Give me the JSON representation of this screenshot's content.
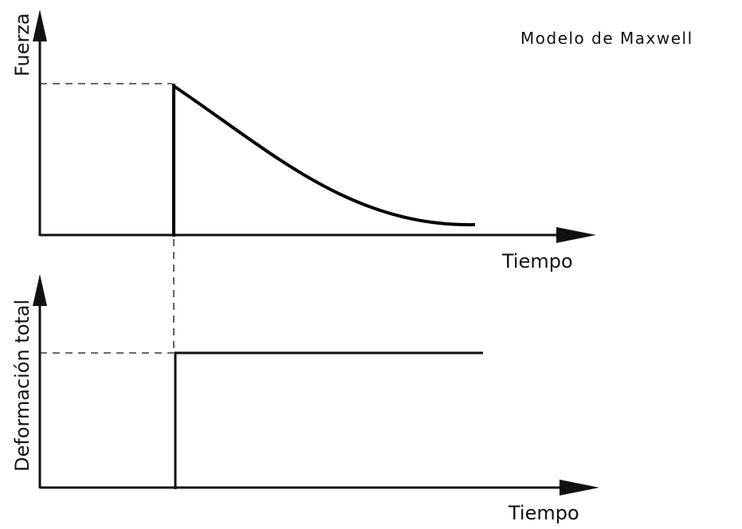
{
  "title": "Modelo de Maxwell",
  "plots": [
    {
      "y_label": "Fuerza",
      "x_label": "Tiempo"
    },
    {
      "y_label": "Deformación total",
      "x_label": "Tiempo"
    }
  ]
}
